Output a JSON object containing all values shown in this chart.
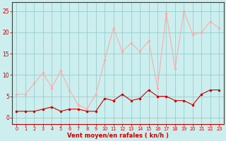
{
  "hours": [
    0,
    1,
    2,
    3,
    4,
    5,
    6,
    7,
    8,
    9,
    10,
    11,
    12,
    13,
    14,
    15,
    16,
    17,
    18,
    19,
    20,
    21,
    22,
    23
  ],
  "gust_values": [
    5.5,
    5.5,
    8.0,
    10.5,
    7.0,
    11.0,
    6.5,
    3.0,
    2.0,
    5.5,
    13.5,
    21.0,
    15.5,
    17.5,
    15.5,
    18.0,
    7.0,
    24.5,
    11.5,
    25.0,
    19.5,
    20.0,
    22.5,
    21.0
  ],
  "avg_values": [
    1.5,
    1.5,
    1.5,
    2.0,
    2.5,
    1.5,
    2.0,
    2.0,
    1.5,
    1.5,
    4.5,
    4.0,
    5.5,
    4.0,
    4.5,
    6.5,
    5.0,
    5.0,
    4.0,
    4.0,
    3.0,
    5.5,
    6.5,
    6.5
  ],
  "avg_color": "#cc0000",
  "gust_color": "#ffaaaa",
  "bg_color": "#cceeee",
  "grid_color": "#99cccc",
  "axis_color": "#cc0000",
  "xlabel": "Vent moyen/en rafales ( kn/h )",
  "yticks": [
    0,
    5,
    10,
    15,
    20,
    25
  ],
  "ylim": [
    -1.5,
    27
  ],
  "xlim": [
    -0.5,
    23.5
  ]
}
